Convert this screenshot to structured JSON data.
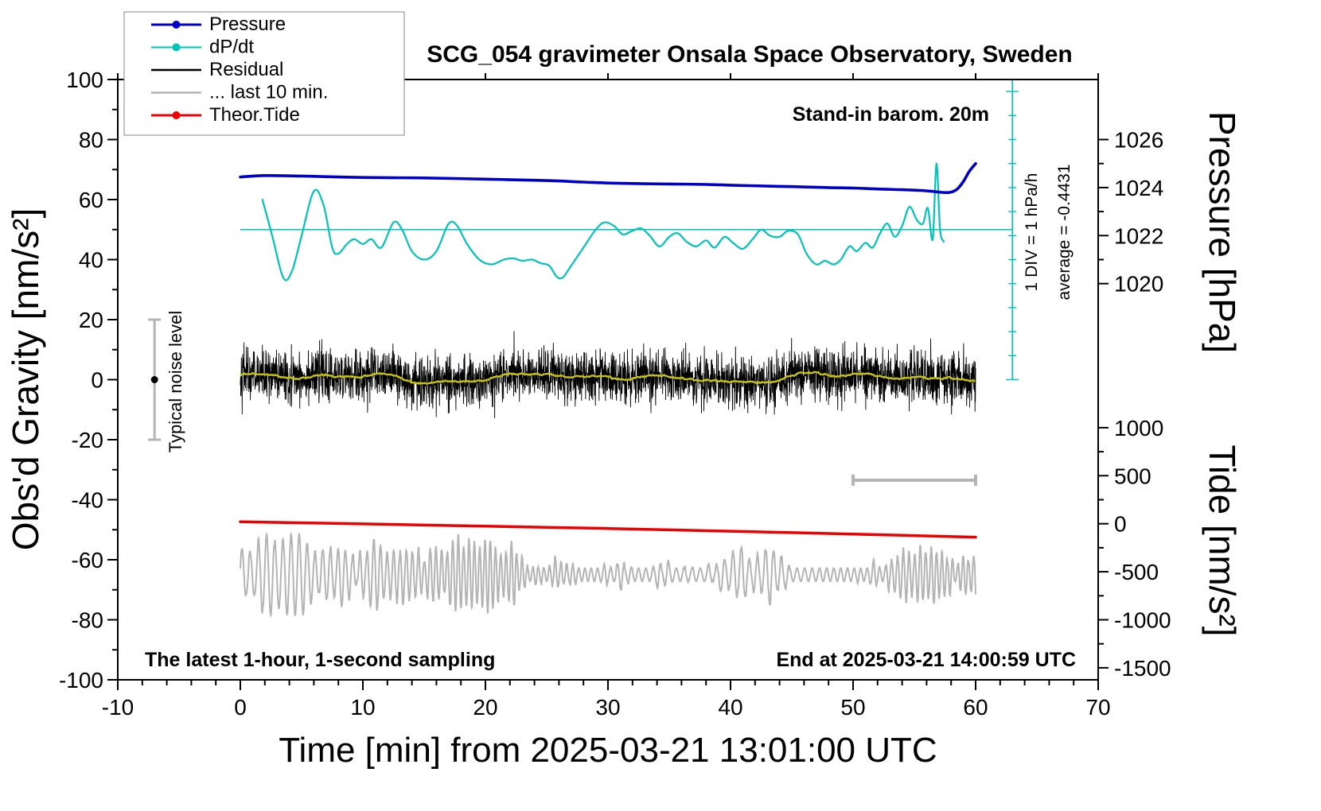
{
  "chart_data": {
    "type": "line",
    "title": "SCG_054 gravimeter Onsala Space Observatory, Sweden",
    "xlabel": "Time [min] from 2025-03-21 13:01:00 UTC",
    "ylabel_left": "Obs'd Gravity [nm/s²]",
    "ylabel_right_top": "Pressure [hPa]",
    "ylabel_right_bottom": "Tide [nm/s²]",
    "xlim": [
      -10,
      70
    ],
    "ylim_left": [
      -100,
      100
    ],
    "x_ticks": [
      -10,
      0,
      10,
      20,
      30,
      40,
      50,
      60,
      70
    ],
    "x_minor_step": 2,
    "y_ticks": [
      -100,
      -80,
      -60,
      -40,
      -20,
      0,
      20,
      40,
      60,
      80,
      100
    ],
    "y_minor_step": 10,
    "grid": false,
    "legend_position": "top-left",
    "pressure_axis": {
      "ticks": [
        1026,
        1024,
        1022,
        1020
      ],
      "minor_ticks": [
        1025,
        1023,
        1021
      ],
      "map_p0": 1016,
      "map_scale": 8
    },
    "tide_axis": {
      "ticks": [
        1000,
        500,
        0,
        -500,
        -1000,
        -1500
      ],
      "minor_ticks": [
        750,
        250,
        -250,
        -750,
        -1250
      ],
      "map_zero_gravity": -48,
      "map_scale": 0.032
    },
    "dpdt_axis": {
      "zero_gravity": 50,
      "units_per_div": 8,
      "axis_x_min": 63,
      "line_x_start": 0,
      "top_gravity": 100,
      "bottom_gravity": 0,
      "div_label": "1 DIV = 1 hPa/h",
      "average_label": "average = -0.4431"
    },
    "annotations": {
      "barometer": "Stand-in barom. 20m",
      "noise_level": "Typical noise level",
      "sampling": "The latest 1-hour, 1-second sampling",
      "end_time": "End at 2025-03-21 14:00:59 UTC"
    },
    "legend": [
      {
        "label": "Pressure",
        "color": "#0000cd",
        "marker": true,
        "width": 3
      },
      {
        "label": "dP/dt",
        "color": "#00c4ba",
        "marker": true,
        "width": 2
      },
      {
        "label": "Residual",
        "color": "#000000",
        "marker": false,
        "width": 2.5
      },
      {
        "label": "... last 10 min.",
        "color": "#b4b4b4",
        "marker": false,
        "width": 2.5
      },
      {
        "label": "Theor.Tide",
        "color": "#ee0000",
        "marker": true,
        "width": 3
      }
    ],
    "colors": {
      "pressure": "#0000cd",
      "dpdt": "#00c4ba",
      "residual": "#000000",
      "residual_smooth": "#c8c400",
      "microseism": "#b4b4b4",
      "tide": "#ee0000",
      "noise_bar": "#b4b4b4"
    },
    "series": {
      "pressure_hPa": [
        [
          0,
          1024.44
        ],
        [
          2,
          1024.5
        ],
        [
          5,
          1024.48
        ],
        [
          10,
          1024.42
        ],
        [
          15,
          1024.4
        ],
        [
          20,
          1024.35
        ],
        [
          25,
          1024.29
        ],
        [
          28,
          1024.23
        ],
        [
          30,
          1024.19
        ],
        [
          33,
          1024.16
        ],
        [
          35,
          1024.15
        ],
        [
          38,
          1024.13
        ],
        [
          40,
          1024.1
        ],
        [
          43,
          1024.06
        ],
        [
          45,
          1024.04
        ],
        [
          48,
          1024.0
        ],
        [
          50,
          1023.98
        ],
        [
          52,
          1023.94
        ],
        [
          54,
          1023.91
        ],
        [
          55.5,
          1023.88
        ],
        [
          56.5,
          1023.84
        ],
        [
          57,
          1023.81
        ],
        [
          57.5,
          1023.79
        ],
        [
          58,
          1023.81
        ],
        [
          58.5,
          1023.94
        ],
        [
          59,
          1024.25
        ],
        [
          59.5,
          1024.69
        ],
        [
          60,
          1025.0
        ]
      ],
      "dpdt_hPa_per_h": [
        [
          1.8,
          1.25
        ],
        [
          2.6,
          -0.25
        ],
        [
          3.5,
          -2.0
        ],
        [
          4.2,
          -1.75
        ],
        [
          5,
          -0.25
        ],
        [
          6,
          1.6
        ],
        [
          6.8,
          1.0
        ],
        [
          7.5,
          -0.75
        ],
        [
          8,
          -1.0
        ],
        [
          8.7,
          -0.6
        ],
        [
          9.3,
          -0.4
        ],
        [
          10,
          -0.6
        ],
        [
          10.7,
          -0.4
        ],
        [
          11.5,
          -0.75
        ],
        [
          12.5,
          0.3
        ],
        [
          13.2,
          0.0
        ],
        [
          14,
          -0.9
        ],
        [
          15,
          -1.25
        ],
        [
          16,
          -0.9
        ],
        [
          17,
          0.25
        ],
        [
          17.7,
          0.15
        ],
        [
          18.5,
          -0.6
        ],
        [
          19.5,
          -1.25
        ],
        [
          20.5,
          -1.45
        ],
        [
          21.5,
          -1.25
        ],
        [
          22.3,
          -1.2
        ],
        [
          23,
          -1.3
        ],
        [
          23.8,
          -1.25
        ],
        [
          24.5,
          -1.4
        ],
        [
          25.2,
          -1.5
        ],
        [
          25.8,
          -1.95
        ],
        [
          26.3,
          -2.0
        ],
        [
          27,
          -1.5
        ],
        [
          28,
          -0.75
        ],
        [
          29,
          0.0
        ],
        [
          29.7,
          0.3
        ],
        [
          30.5,
          0.15
        ],
        [
          31.2,
          -0.2
        ],
        [
          32,
          -0.05
        ],
        [
          32.7,
          0.05
        ],
        [
          33.4,
          -0.25
        ],
        [
          34.2,
          -0.7
        ],
        [
          35,
          -0.3
        ],
        [
          35.7,
          -0.15
        ],
        [
          36.4,
          -0.5
        ],
        [
          37.2,
          -0.7
        ],
        [
          38,
          -0.45
        ],
        [
          38.7,
          -0.75
        ],
        [
          39.5,
          -0.3
        ],
        [
          40.2,
          -0.55
        ],
        [
          41,
          -0.8
        ],
        [
          41.8,
          -0.4
        ],
        [
          42.5,
          0.0
        ],
        [
          43.2,
          -0.25
        ],
        [
          44,
          -0.3
        ],
        [
          44.7,
          -0.05
        ],
        [
          45.5,
          -0.2
        ],
        [
          46.2,
          -1.0
        ],
        [
          47,
          -1.45
        ],
        [
          47.7,
          -1.3
        ],
        [
          48.4,
          -1.45
        ],
        [
          49,
          -1.25
        ],
        [
          49.7,
          -0.7
        ],
        [
          50.3,
          -0.9
        ],
        [
          51,
          -0.55
        ],
        [
          51.6,
          -0.75
        ],
        [
          52.2,
          -0.15
        ],
        [
          52.8,
          0.25
        ],
        [
          53.4,
          -0.3
        ],
        [
          54,
          0.15
        ],
        [
          54.6,
          0.95
        ],
        [
          55.2,
          0.4
        ],
        [
          55.7,
          0.25
        ],
        [
          56.1,
          0.9
        ],
        [
          56.5,
          -0.4
        ],
        [
          56.8,
          2.75
        ],
        [
          57.1,
          0.0
        ],
        [
          57.4,
          -0.5
        ]
      ],
      "tide_nms2": [
        [
          0,
          20
        ],
        [
          10,
          -2
        ],
        [
          20,
          -26
        ],
        [
          30,
          -50
        ],
        [
          40,
          -78
        ],
        [
          50,
          -108
        ],
        [
          60,
          -140
        ]
      ],
      "residual": {
        "x_start": 0,
        "x_end": 60,
        "n": 3600,
        "mean": 0.6,
        "sigma": 4.2,
        "seed": 42,
        "smooth_window": 50
      },
      "microseism": {
        "x_start": 0,
        "x_end": 60,
        "n": 3000,
        "center": -65,
        "period_min": 0.55,
        "amp_base": 6.0,
        "amp_var": 3.5,
        "seed": 7
      }
    },
    "noise_bar": {
      "x": -7,
      "y_min": -20,
      "y_max": 20,
      "dot_y": 0
    },
    "scale_bar": {
      "x_start": 50,
      "x_end": 60,
      "y": -33.5
    }
  }
}
